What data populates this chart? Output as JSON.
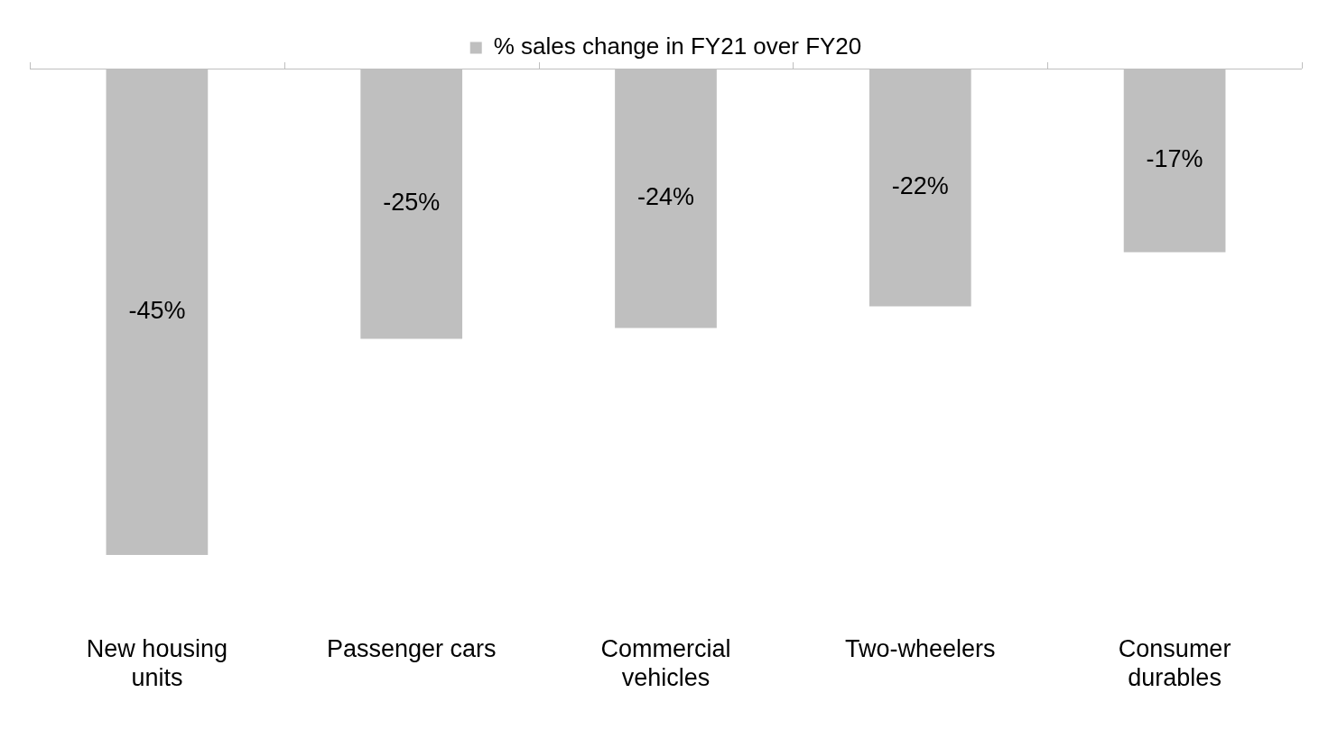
{
  "chart_data": {
    "type": "bar",
    "categories": [
      "New housing units",
      "Passenger cars",
      "Commercial vehicles",
      "Two-wheelers",
      "Consumer durables"
    ],
    "series": [
      {
        "name": "% sales change in FY21 over FY20",
        "color": "#bfbfbf",
        "values": [
          -45,
          -25,
          -24,
          -22,
          -17
        ],
        "value_labels": [
          "-45%",
          "-25%",
          "-24%",
          "-22%",
          "-17%"
        ]
      }
    ],
    "legend": "top",
    "grid": false
  }
}
